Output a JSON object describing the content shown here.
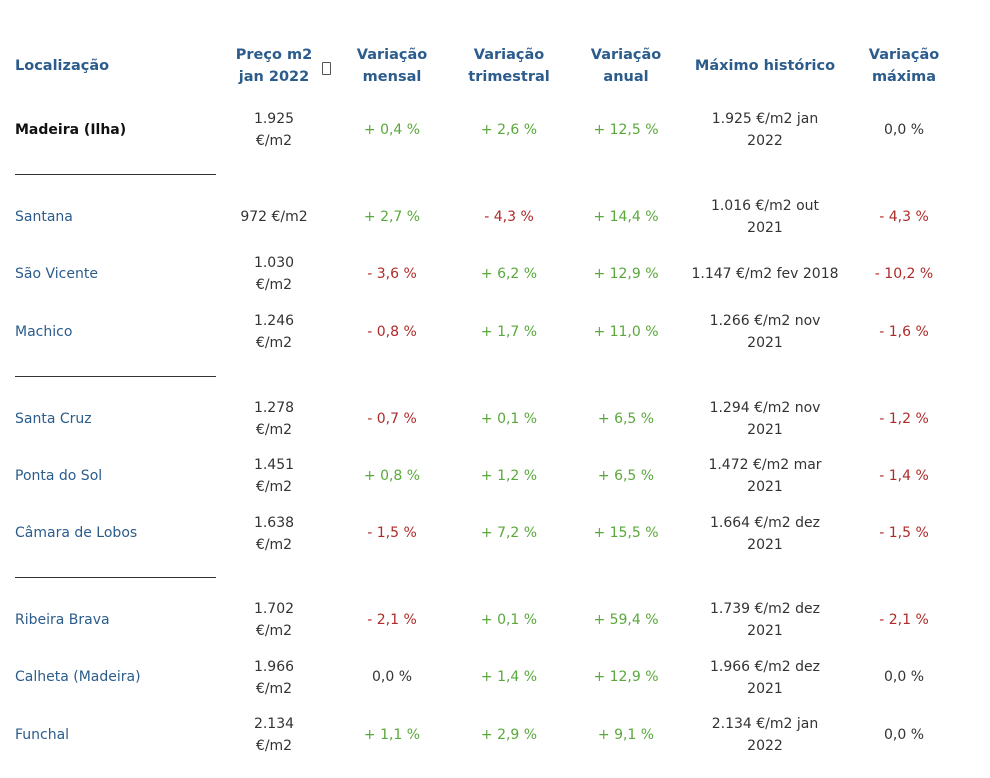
{
  "headers": {
    "location": "Localização",
    "price": [
      "Preço m2",
      "jan 2022"
    ],
    "monthly": [
      "Variação",
      "mensal"
    ],
    "quarterly": [
      "Variação",
      "trimestral"
    ],
    "annual": [
      "Variação",
      "anual"
    ],
    "max_hist": "Máximo histórico",
    "max_var": [
      "Variação",
      "máxima"
    ]
  },
  "rows": [
    {
      "name": "Madeira (Ilha)",
      "price": [
        "1.925",
        "€/m2"
      ],
      "monthly": "+ 0,4 %",
      "quarterly": "+ 2,6 %",
      "annual": "+ 12,5 %",
      "max": [
        "1.925 €/m2 jan",
        "2022"
      ],
      "maxvar": "0,0 %"
    },
    {
      "name": "Santana",
      "price": [
        "972 €/m2"
      ],
      "monthly": "+ 2,7 %",
      "quarterly": "- 4,3 %",
      "annual": "+ 14,4 %",
      "max": [
        "1.016 €/m2 out",
        "2021"
      ],
      "maxvar": "- 4,3 %"
    },
    {
      "name": "São Vicente",
      "price": [
        "1.030",
        "€/m2"
      ],
      "monthly": "- 3,6 %",
      "quarterly": "+ 6,2 %",
      "annual": "+ 12,9 %",
      "max": [
        "1.147 €/m2 fev 2018"
      ],
      "maxvar": "- 10,2 %"
    },
    {
      "name": "Machico",
      "price": [
        "1.246",
        "€/m2"
      ],
      "monthly": "- 0,8 %",
      "quarterly": "+ 1,7 %",
      "annual": "+ 11,0 %",
      "max": [
        "1.266 €/m2 nov",
        "2021"
      ],
      "maxvar": "- 1,6 %"
    },
    {
      "name": "Santa Cruz",
      "price": [
        "1.278",
        "€/m2"
      ],
      "monthly": "- 0,7 %",
      "quarterly": "+ 0,1 %",
      "annual": "+ 6,5 %",
      "max": [
        "1.294 €/m2 nov",
        "2021"
      ],
      "maxvar": "- 1,2 %"
    },
    {
      "name": "Ponta do Sol",
      "price": [
        "1.451",
        "€/m2"
      ],
      "monthly": "+ 0,8 %",
      "quarterly": "+ 1,2 %",
      "annual": "+ 6,5 %",
      "max": [
        "1.472 €/m2 mar",
        "2021"
      ],
      "maxvar": "- 1,4 %"
    },
    {
      "name": "Câmara de Lobos",
      "price": [
        "1.638",
        "€/m2"
      ],
      "monthly": "- 1,5 %",
      "quarterly": "+ 7,2 %",
      "annual": "+ 15,5 %",
      "max": [
        "1.664 €/m2 dez",
        "2021"
      ],
      "maxvar": "- 1,5 %"
    },
    {
      "name": "Ribeira Brava",
      "price": [
        "1.702",
        "€/m2"
      ],
      "monthly": "- 2,1 %",
      "quarterly": "+ 0,1 %",
      "annual": "+ 59,4 %",
      "max": [
        "1.739 €/m2 dez",
        "2021"
      ],
      "maxvar": "- 2,1 %"
    },
    {
      "name": "Calheta (Madeira)",
      "price": [
        "1.966",
        "€/m2"
      ],
      "monthly": "0,0 %",
      "quarterly": "+ 1,4 %",
      "annual": "+ 12,9 %",
      "max": [
        "1.966 €/m2 dez",
        "2021"
      ],
      "maxvar": "0,0 %"
    },
    {
      "name": "Funchal",
      "price": [
        "2.134",
        "€/m2"
      ],
      "monthly": "+ 1,1 %",
      "quarterly": "+ 2,9 %",
      "annual": "+ 9,1 %",
      "max": [
        "2.134 €/m2 jan",
        "2022"
      ],
      "maxvar": "0,0 %"
    }
  ],
  "colors": {
    "header": "#2b5c8c",
    "positive": "#5aa83c",
    "negative": "#b02a2a"
  },
  "icons": {
    "sort": "sort-icon"
  }
}
